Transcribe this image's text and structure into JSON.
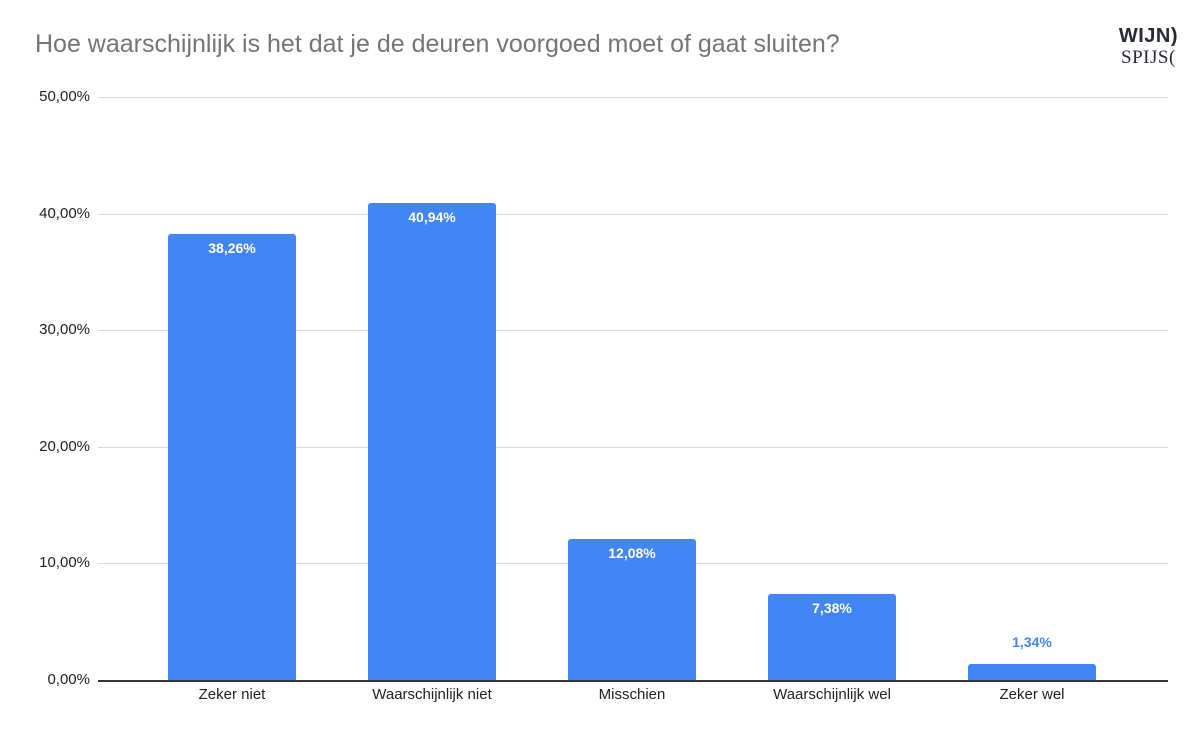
{
  "header": {
    "title": "Hoe waarschijnlijk is het dat je de deuren voorgoed moet of gaat sluiten?"
  },
  "logo": {
    "top_text": "WIJN",
    "top_mark": ")",
    "bottom_text": "SPIJS",
    "bottom_mark": "("
  },
  "chart_data": {
    "type": "bar",
    "title": "Hoe waarschijnlijk is het dat je de deuren voorgoed moet of gaat sluiten?",
    "categories": [
      "Zeker niet",
      "Waarschijnlijk niet",
      "Misschien",
      "Waarschijnlijk wel",
      "Zeker wel"
    ],
    "values": [
      38.26,
      40.94,
      12.08,
      7.38,
      1.34
    ],
    "value_labels": [
      "38,26%",
      "40,94%",
      "12,08%",
      "7,38%",
      "1,34%"
    ],
    "y_ticks": [
      "0,00%",
      "10,00%",
      "20,00%",
      "30,00%",
      "40,00%",
      "50,00%"
    ],
    "ylim": [
      0,
      50
    ],
    "xlabel": "",
    "ylabel": "",
    "grid": true,
    "legend": "none",
    "colors": {
      "bar": "#4285f4",
      "value_label_inside": "#ffffff",
      "value_label_above": "#4285f4",
      "gridline": "#dadada",
      "baseline": "#333333",
      "axis_text": "#222222",
      "title_text": "#757575"
    }
  }
}
